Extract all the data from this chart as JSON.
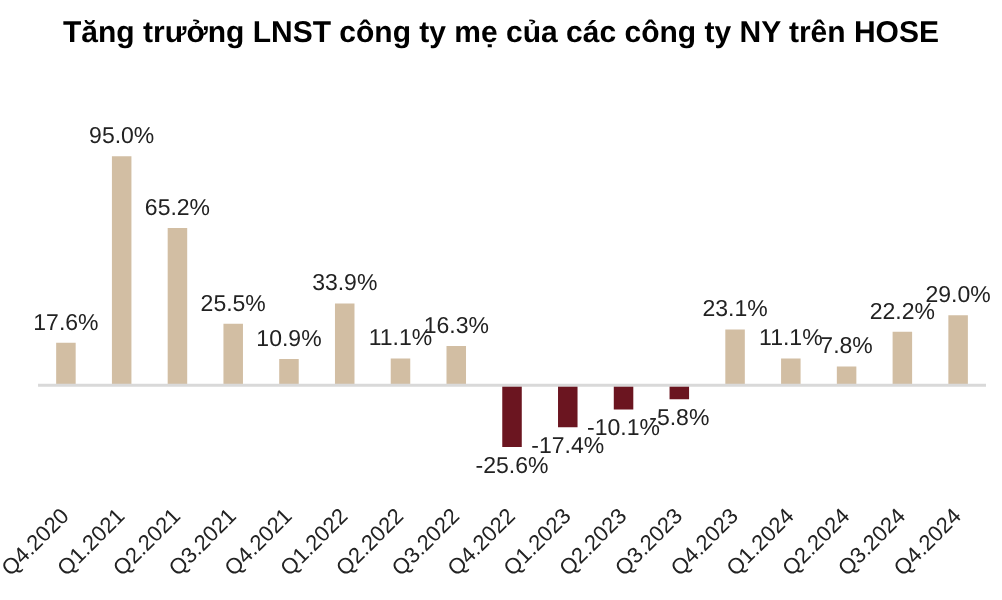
{
  "chart_data": {
    "type": "bar",
    "title": "Tăng trưởng LNST công ty mẹ của các công ty NY trên HOSE",
    "categories": [
      "Q4.2020",
      "Q1.2021",
      "Q2.2021",
      "Q3.2021",
      "Q4.2021",
      "Q1.2022",
      "Q2.2022",
      "Q3.2022",
      "Q4.2022",
      "Q1.2023",
      "Q2.2023",
      "Q3.2023",
      "Q4.2023",
      "Q1.2024",
      "Q2.2024",
      "Q3.2024",
      "Q4.2024"
    ],
    "values": [
      17.6,
      95.0,
      65.2,
      25.5,
      10.9,
      33.9,
      11.1,
      16.3,
      -25.6,
      -17.4,
      -10.1,
      -5.8,
      23.1,
      11.1,
      7.8,
      22.2,
      29.0
    ],
    "value_labels": [
      "17.6%",
      "95.0%",
      "65.2%",
      "25.5%",
      "10.9%",
      "33.9%",
      "11.1%",
      "16.3%",
      "-25.6%",
      "-17.4%",
      "-10.1%",
      "-5.8%",
      "23.1%",
      "11.1%",
      "7.8%",
      "22.2%",
      "29.0%"
    ],
    "colors": [
      "#d2bea3",
      "#d2bea3",
      "#d2bea3",
      "#d2bea3",
      "#d2bea3",
      "#d2bea3",
      "#d2bea3",
      "#d2bea3",
      "#6b1520",
      "#6b1520",
      "#6b1520",
      "#6b1520",
      "#d2bea3",
      "#d2bea3",
      "#d2bea3",
      "#d2bea3",
      "#d2bea3"
    ],
    "tick_labels": "x",
    "grid": false,
    "legend": false
  }
}
